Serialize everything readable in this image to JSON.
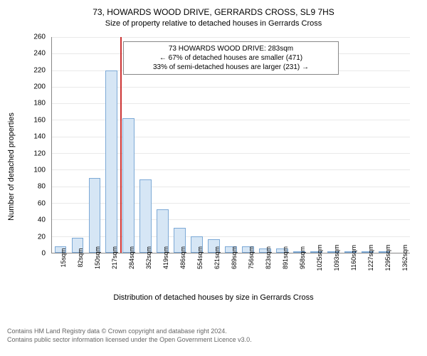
{
  "title": "73, HOWARDS WOOD DRIVE, GERRARDS CROSS, SL9 7HS",
  "subtitle": "Size of property relative to detached houses in Gerrards Cross",
  "chart": {
    "type": "histogram",
    "y_label": "Number of detached properties",
    "x_label": "Distribution of detached houses by size in Gerrards Cross",
    "y_max": 260,
    "y_tick_step": 20,
    "y_ticks": [
      0,
      20,
      40,
      60,
      80,
      100,
      120,
      140,
      160,
      180,
      200,
      220,
      240,
      260
    ],
    "x_tick_labels": [
      "15sqm",
      "82sqm",
      "150sqm",
      "217sqm",
      "284sqm",
      "352sqm",
      "419sqm",
      "486sqm",
      "554sqm",
      "621sqm",
      "689sqm",
      "756sqm",
      "823sqm",
      "891sqm",
      "958sqm",
      "1025sqm",
      "1093sqm",
      "1160sqm",
      "1227sqm",
      "1295sqm",
      "1362sqm"
    ],
    "bar_values": [
      8,
      18,
      90,
      220,
      162,
      88,
      52,
      30,
      20,
      16,
      8,
      8,
      5,
      5,
      2,
      2,
      2,
      2,
      1,
      1,
      0
    ],
    "bar_fill": "#d6e6f5",
    "bar_stroke": "#7ca9d6",
    "grid_color": "#e9e9e9",
    "axis_color": "#888888",
    "reference_line": {
      "x_index": 4,
      "color": "#cc3333"
    },
    "info_box": {
      "line1": "73 HOWARDS WOOD DRIVE: 283sqm",
      "line2": "← 67% of detached houses are smaller (471)",
      "line3": "33% of semi-detached houses are larger (231) →"
    }
  },
  "footer": {
    "line1": "Contains HM Land Registry data © Crown copyright and database right 2024.",
    "line2": "Contains public sector information licensed under the Open Government Licence v3.0."
  }
}
